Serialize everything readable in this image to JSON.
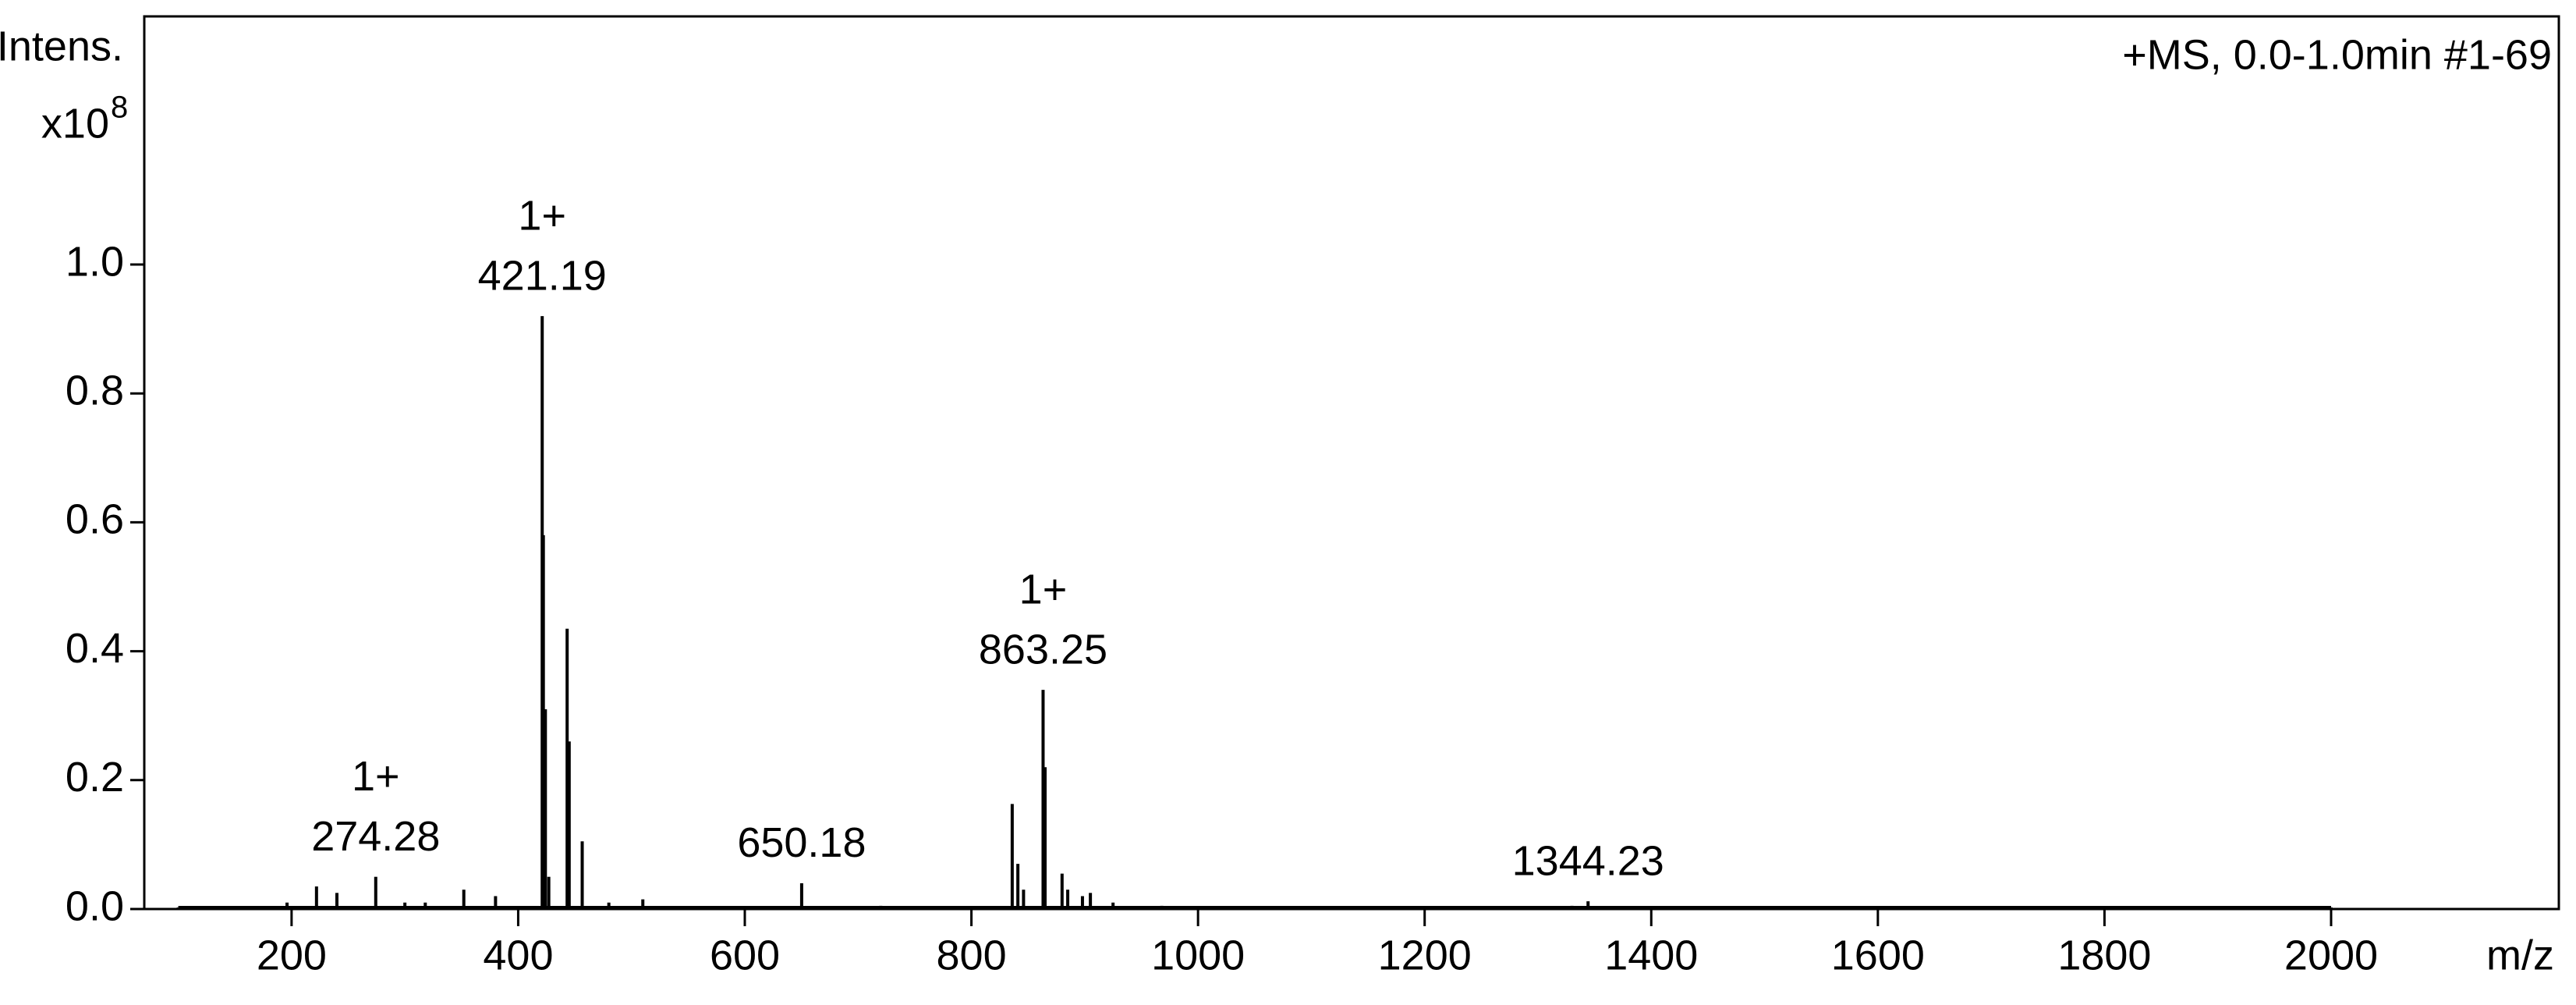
{
  "chart_data": {
    "type": "spectrum",
    "y_label": "Intens.",
    "y_scale_label": "x10",
    "y_scale_exponent": "8",
    "x_label": "m/z",
    "annotation": "+MS, 0.0-1.0min #1-69",
    "color": "#000000",
    "x": [
      100,
      196,
      222,
      240,
      274.28,
      300,
      318,
      352,
      380,
      421.19,
      422.2,
      424,
      427,
      443.2,
      445,
      456.5,
      480,
      510,
      650.18,
      720,
      836,
      841,
      846,
      863.25,
      865,
      880,
      885,
      898,
      905,
      925,
      968,
      1330,
      1344.23,
      2000
    ],
    "values": [
      0,
      0.01,
      0.035,
      0.025,
      0.05,
      0.01,
      0.01,
      0.03,
      0.02,
      0.92,
      0.58,
      0.31,
      0.05,
      0.435,
      0.26,
      0.105,
      0.01,
      0.015,
      0.04,
      0.005,
      0.163,
      0.07,
      0.03,
      0.34,
      0.22,
      0.055,
      0.03,
      0.02,
      0.025,
      0.01,
      0.005,
      0.005,
      0.012,
      0
    ],
    "peak_labels": [
      {
        "x": 274.28,
        "y": 0.05,
        "charge": "1+"
      },
      {
        "x": 421.19,
        "y": 0.92,
        "charge": "1+"
      },
      {
        "x": 650.18,
        "y": 0.04
      },
      {
        "x": 863.25,
        "y": 0.34,
        "charge": "1+"
      },
      {
        "x": 1344.23,
        "y": 0.012
      }
    ],
    "xlim": [
      70,
      2201
    ],
    "xticks": [
      200,
      400,
      600,
      800,
      1000,
      1200,
      1400,
      1600,
      1800,
      2000
    ],
    "ylim": [
      0,
      1.385
    ],
    "yticks": [
      {
        "value": 0,
        "label": "0.0"
      },
      0.2,
      0.4,
      0.6,
      0.8,
      {
        "value": 1,
        "label": "1.0"
      }
    ]
  }
}
